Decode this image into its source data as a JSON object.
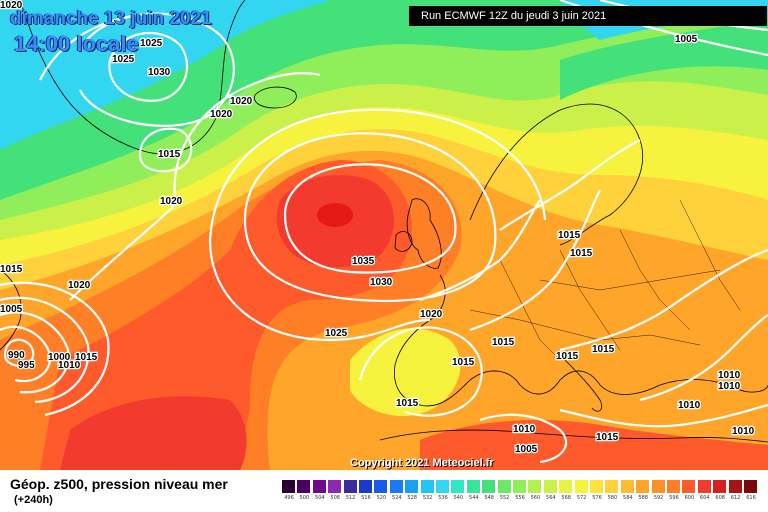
{
  "header": {
    "date": "dimanche 13 juin 2021",
    "time": "14:00 locale",
    "run": "Run ECMWF 12Z du jeudi 3 juin 2021"
  },
  "copyright": "Copyright 2021 Meteociel.fr",
  "footer": {
    "title": "Géop. z500, pression niveau mer",
    "forecast": "(+240h)"
  },
  "colors": {
    "cyan": "#33d6f0",
    "green": "#44e07a",
    "light_green": "#8fee5a",
    "yellow_green": "#ccf04a",
    "yellow": "#f6f23e",
    "light_orange": "#ffd23c",
    "orange": "#ffa52a",
    "dark_orange": "#ff7f26",
    "red_orange": "#ff5a2c",
    "red": "#f23a2f",
    "isobar": "#ffffff"
  },
  "isobar_labels": [
    {
      "text": "1020"
    },
    {
      "text": "1025"
    },
    {
      "text": "1025"
    },
    {
      "text": "1030"
    },
    {
      "text": "1020"
    },
    {
      "text": "1020"
    },
    {
      "text": "1015"
    },
    {
      "text": "1020"
    },
    {
      "text": "1005"
    },
    {
      "text": "1015"
    },
    {
      "text": "1020"
    },
    {
      "text": "1005"
    },
    {
      "text": "990"
    },
    {
      "text": "995"
    },
    {
      "text": "1000"
    },
    {
      "text": "1010"
    },
    {
      "text": "1015"
    },
    {
      "text": "1035"
    },
    {
      "text": "1030"
    },
    {
      "text": "1025"
    },
    {
      "text": "1020"
    },
    {
      "text": "1015"
    },
    {
      "text": "1015"
    },
    {
      "text": "1015"
    },
    {
      "text": "1015"
    },
    {
      "text": "1015"
    },
    {
      "text": "1015"
    },
    {
      "text": "1015"
    },
    {
      "text": "1010"
    },
    {
      "text": "1005"
    },
    {
      "text": "1015"
    },
    {
      "text": "1010"
    },
    {
      "text": "1010"
    },
    {
      "text": "1010"
    },
    {
      "text": "1010"
    }
  ],
  "color_scale": {
    "values": [
      "496",
      "500",
      "504",
      "508",
      "512",
      "516",
      "520",
      "524",
      "528",
      "532",
      "536",
      "540",
      "544",
      "548",
      "552",
      "556",
      "560",
      "564",
      "568",
      "572",
      "576",
      "580",
      "584",
      "588",
      "592",
      "596",
      "600",
      "604",
      "608",
      "612",
      "616"
    ],
    "colors": [
      "#2a0030",
      "#4a0060",
      "#6e0a8a",
      "#8a2ab0",
      "#3a2a9a",
      "#1a3aca",
      "#1a5ae8",
      "#1a7af2",
      "#1aa0f2",
      "#22c4f2",
      "#33d6f0",
      "#33e6c8",
      "#3ae29a",
      "#44e07a",
      "#6ae866",
      "#8fee5a",
      "#b4f04e",
      "#ccf04a",
      "#e6f244",
      "#f6f23e",
      "#ffe23a",
      "#ffd23c",
      "#ffbc33",
      "#ffa52a",
      "#ff8f26",
      "#ff7f26",
      "#ff5a2c",
      "#f23a2f",
      "#d42020",
      "#a81414",
      "#7a0a0a"
    ]
  }
}
